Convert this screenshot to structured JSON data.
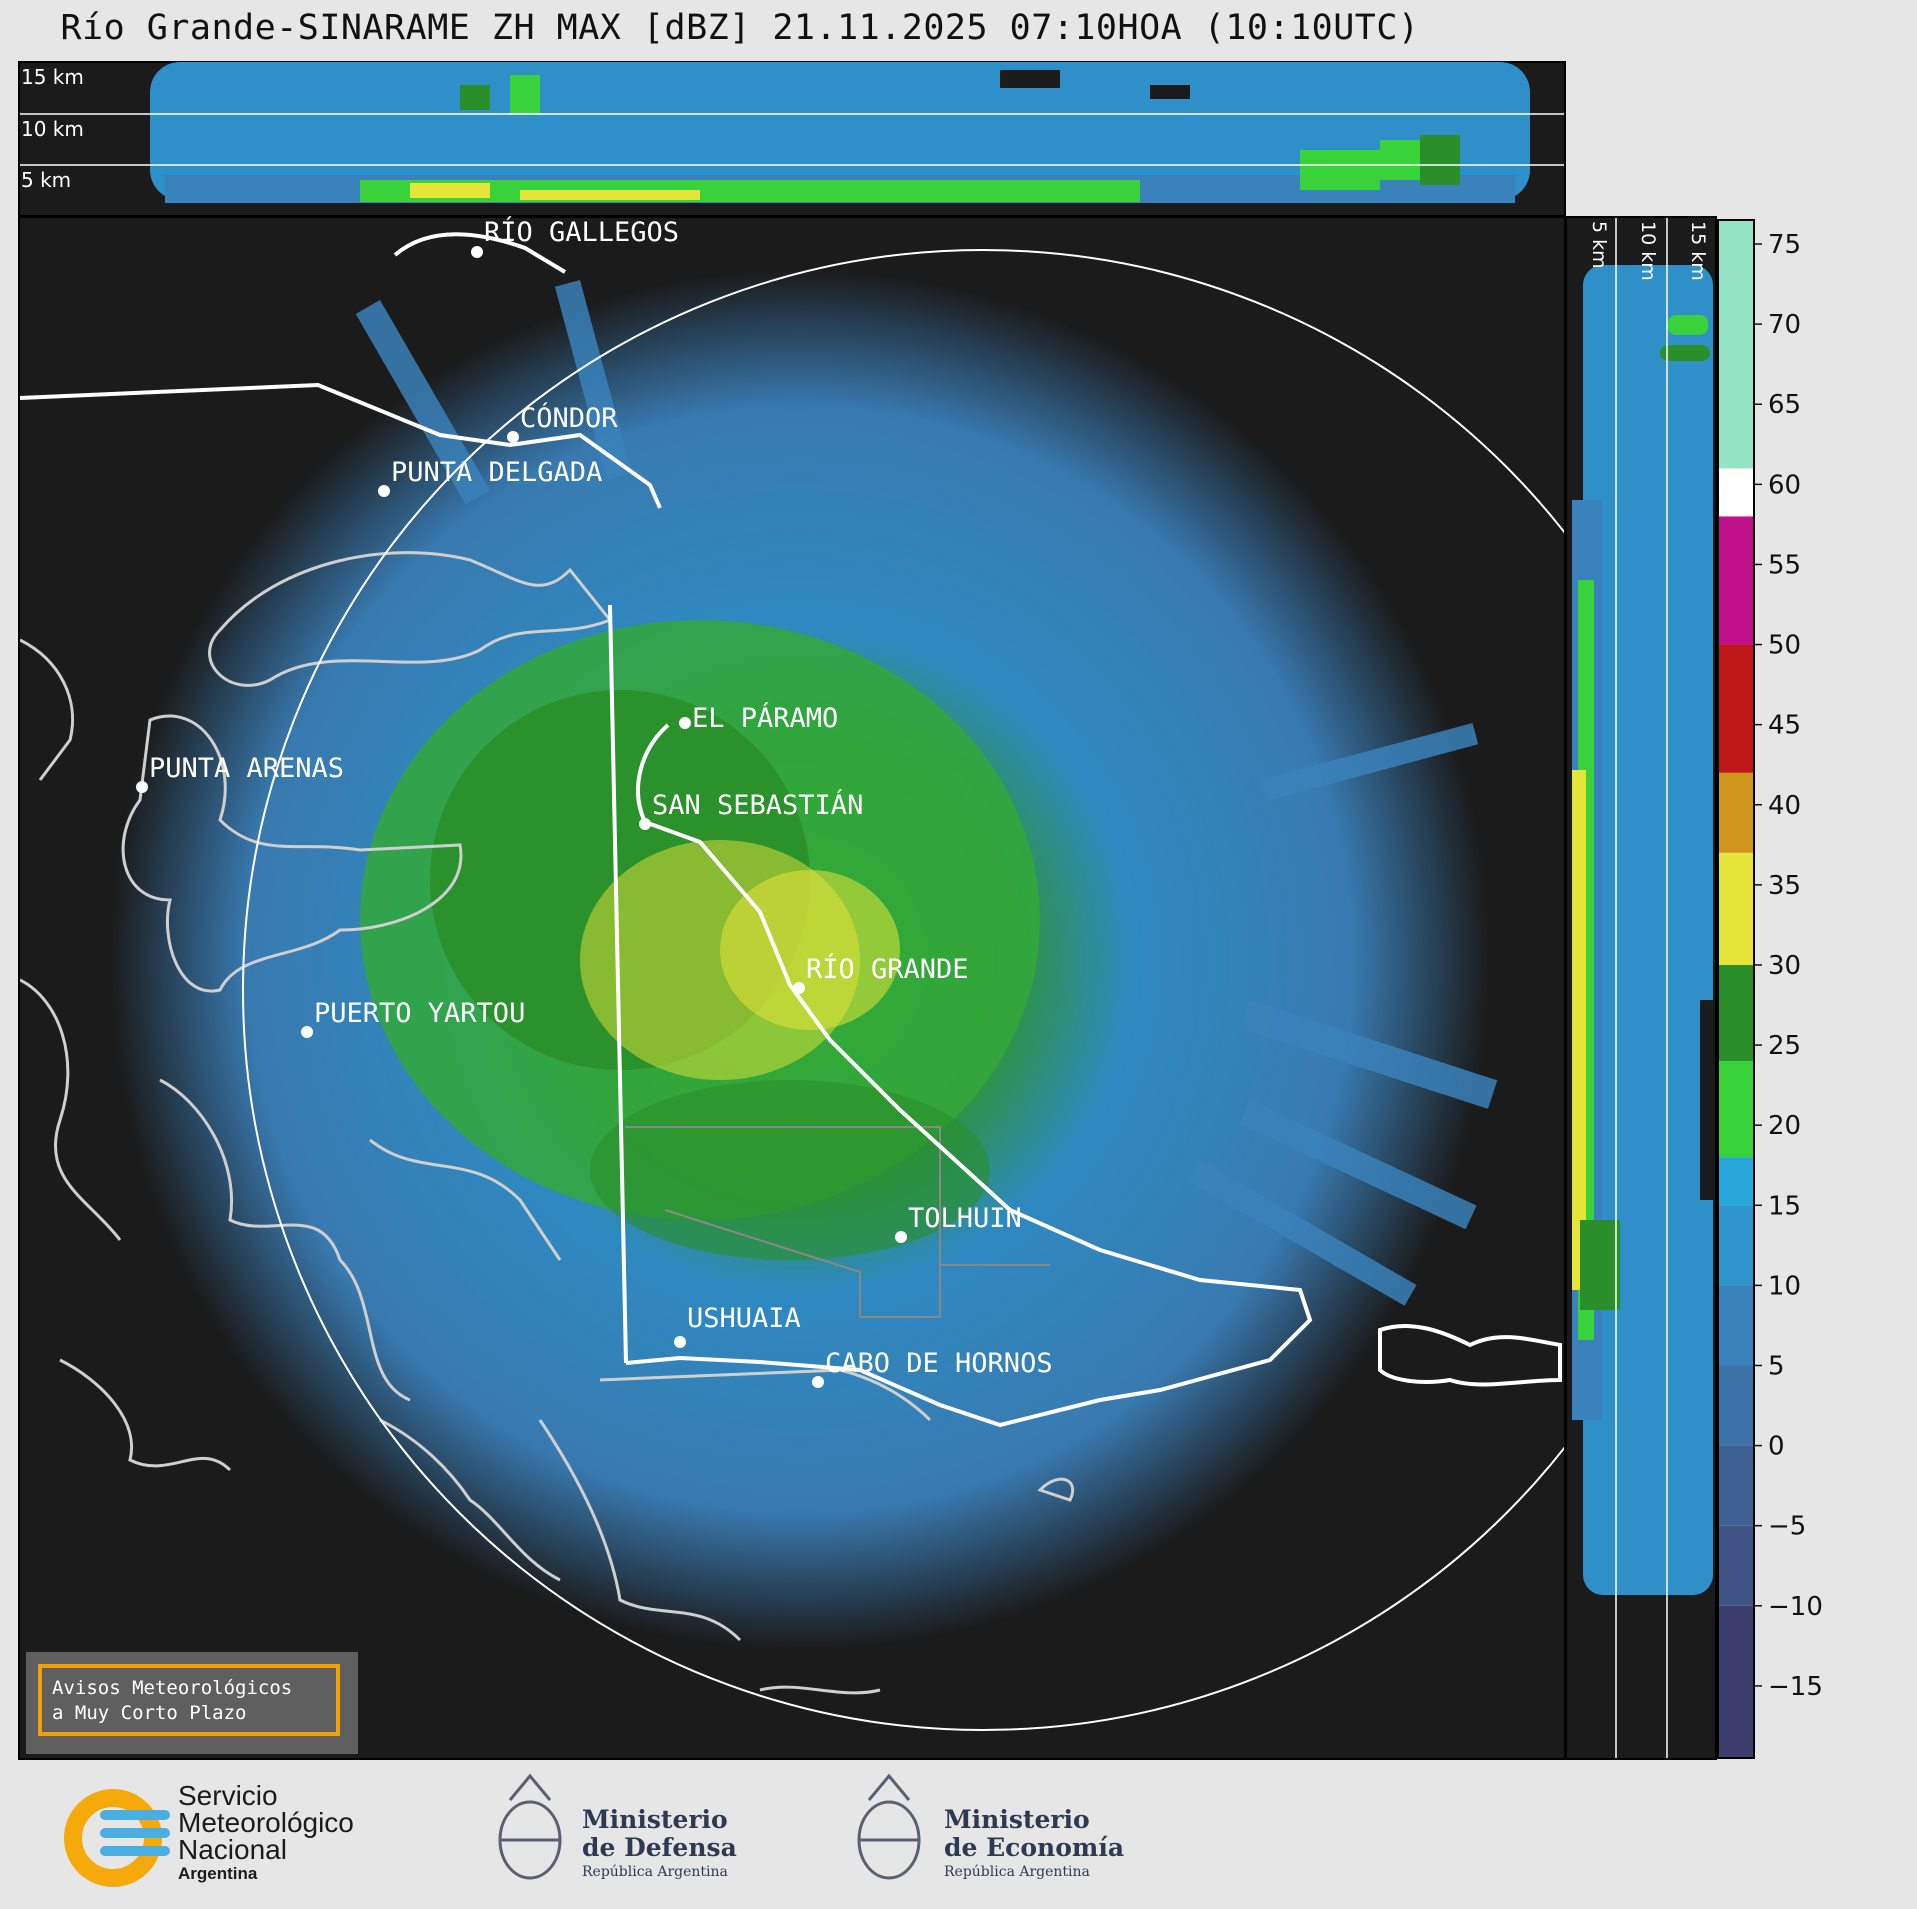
{
  "title": "Río Grande-SINARAME ZH MAX [dBZ] 21.11.2025 07:10HOA (10:10UTC)",
  "top_section": {
    "height_labels": [
      "15 km",
      "10 km",
      "5 km"
    ]
  },
  "side_section": {
    "height_labels": [
      "5 km",
      "10 km",
      "15 km"
    ]
  },
  "map": {
    "places": [
      {
        "name": "RÍO GALLEGOS"
      },
      {
        "name": "CÓNDOR"
      },
      {
        "name": "PUNTA DELGADA"
      },
      {
        "name": "EL PÁRAMO"
      },
      {
        "name": "PUNTA ARENAS"
      },
      {
        "name": "SAN SEBASTIÁN"
      },
      {
        "name": "RÍO GRANDE"
      },
      {
        "name": "PUERTO YARTOU"
      },
      {
        "name": "TOLHUIN"
      },
      {
        "name": "USHUAIA"
      },
      {
        "name": "CABO DE HORNOS"
      }
    ]
  },
  "colorbar": {
    "ticks": [
      "75",
      "70",
      "65",
      "60",
      "55",
      "50",
      "45",
      "40",
      "35",
      "30",
      "25",
      "20",
      "15",
      "10",
      "5",
      "0",
      "−5",
      "−10",
      "−15"
    ],
    "range": [
      -19.5,
      76.5
    ],
    "stops": [
      {
        "from": -19.5,
        "to": -10,
        "color": "#3c3f6e"
      },
      {
        "from": -10,
        "to": -5,
        "color": "#3f5385"
      },
      {
        "from": -5,
        "to": 0,
        "color": "#3e6093"
      },
      {
        "from": 0,
        "to": 5,
        "color": "#3d72a8"
      },
      {
        "from": 5,
        "to": 10,
        "color": "#3a82bb"
      },
      {
        "from": 10,
        "to": 15,
        "color": "#2f93cc"
      },
      {
        "from": 15,
        "to": 18,
        "color": "#27a6dc"
      },
      {
        "from": 18,
        "to": 24,
        "color": "#39d23a"
      },
      {
        "from": 24,
        "to": 30,
        "color": "#2a8f2a"
      },
      {
        "from": 30,
        "to": 37,
        "color": "#e5e43a"
      },
      {
        "from": 37,
        "to": 42,
        "color": "#d0961c"
      },
      {
        "from": 42,
        "to": 50,
        "color": "#c01818"
      },
      {
        "from": 50,
        "to": 58,
        "color": "#c0108a"
      },
      {
        "from": 58,
        "to": 61,
        "color": "#ffffff"
      },
      {
        "from": 61,
        "to": 76.5,
        "color": "#95e2c5"
      }
    ]
  },
  "warning_box": {
    "line1": "Avisos Meteorológicos",
    "line2": "a Muy Corto Plazo"
  },
  "logos": {
    "smn": {
      "line1": "Servicio",
      "line2": "Meteorológico",
      "line3": "Nacional",
      "country": "Argentina"
    },
    "defensa": {
      "line1": "Ministerio",
      "line2": "de Defensa",
      "line3": "República Argentina"
    },
    "economia": {
      "line1": "Ministerio",
      "line2": "de Economía",
      "line3": "República Argentina"
    }
  },
  "colors": {
    "background": "#e6e6e6",
    "panel": "#1b1b1b",
    "accent": "#f0a10a"
  }
}
